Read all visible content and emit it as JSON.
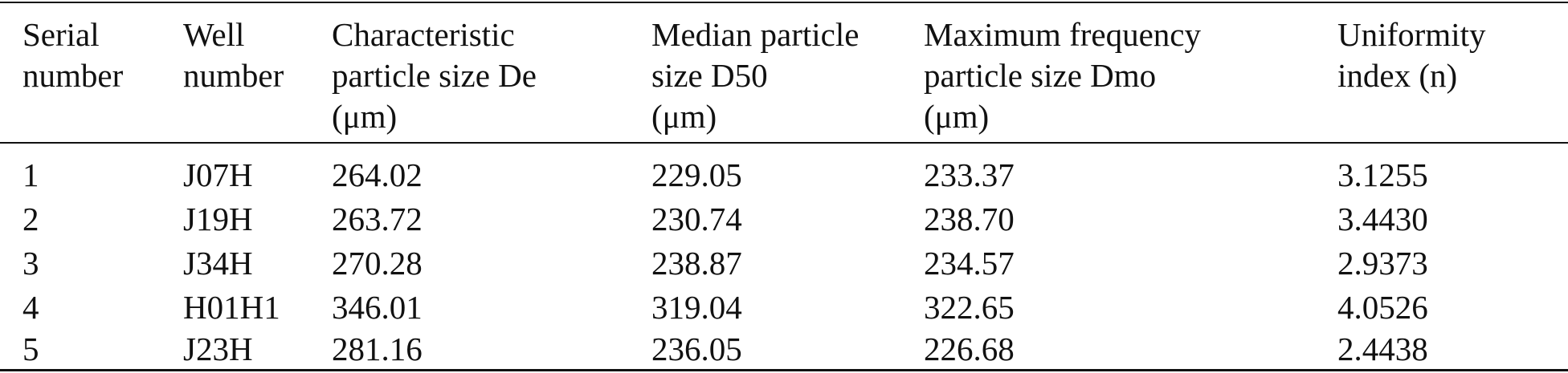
{
  "table": {
    "headers": [
      "Serial\nnumber",
      "Well\nnumber",
      "Characteristic\nparticle size De\n(μm)",
      "Median particle\nsize D50\n(μm)",
      "Maximum frequency\nparticle size Dmo\n(μm)",
      "Uniformity\nindex (n)"
    ],
    "rows": [
      [
        "1",
        "J07H",
        "264.02",
        "229.05",
        "233.37",
        "3.1255"
      ],
      [
        "2",
        "J19H",
        "263.72",
        "230.74",
        "238.70",
        "3.4430"
      ],
      [
        "3",
        "J34H",
        "270.28",
        "238.87",
        "234.57",
        "2.9373"
      ],
      [
        "4",
        "H01H1",
        "346.01",
        "319.04",
        "322.65",
        "4.0526"
      ],
      [
        "5",
        "J23H",
        "281.16",
        "236.05",
        "226.68",
        "2.4438"
      ]
    ]
  }
}
